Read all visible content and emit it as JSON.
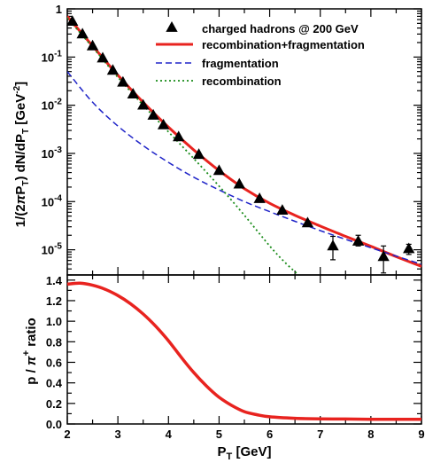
{
  "chart_data": [
    {
      "type": "scatter",
      "panel": "top",
      "ylabel": "1/(2πP_T) dN/dP_T [GeV^-2]",
      "yscale": "log",
      "xlim": [
        2,
        9
      ],
      "ylim": [
        3e-06,
        1
      ],
      "grid": false,
      "legend_position": "top-right",
      "y_ticks": [
        1,
        0.1,
        0.01,
        0.001,
        0.0001,
        1e-05
      ],
      "y_tick_labels": [
        {
          "base": "1",
          "exp": ""
        },
        {
          "base": "10",
          "exp": "-1"
        },
        {
          "base": "10",
          "exp": "-2"
        },
        {
          "base": "10",
          "exp": "-3"
        },
        {
          "base": "10",
          "exp": "-4"
        },
        {
          "base": "10",
          "exp": "-5"
        }
      ],
      "series": [
        {
          "name": "charged hadrons @ 200 GeV",
          "style": "triangles",
          "color": "#000000",
          "points": [
            {
              "x": 2.1,
              "y": 0.55
            },
            {
              "x": 2.3,
              "y": 0.3
            },
            {
              "x": 2.5,
              "y": 0.17
            },
            {
              "x": 2.7,
              "y": 0.095
            },
            {
              "x": 2.9,
              "y": 0.053
            },
            {
              "x": 3.1,
              "y": 0.03
            },
            {
              "x": 3.3,
              "y": 0.017
            },
            {
              "x": 3.5,
              "y": 0.01
            },
            {
              "x": 3.7,
              "y": 0.0062
            },
            {
              "x": 3.9,
              "y": 0.0039
            },
            {
              "x": 4.2,
              "y": 0.0022
            },
            {
              "x": 4.6,
              "y": 0.00095
            },
            {
              "x": 5.0,
              "y": 0.00044
            },
            {
              "x": 5.4,
              "y": 0.00023
            },
            {
              "x": 5.8,
              "y": 0.000115
            },
            {
              "x": 6.25,
              "y": 6.6e-05
            },
            {
              "x": 6.75,
              "y": 3.6e-05
            },
            {
              "x": 7.25,
              "y": 1.2e-05,
              "ylo": 6.2e-06,
              "yhi": 1.9e-05
            },
            {
              "x": 7.75,
              "y": 1.5e-05,
              "ylo": 1.2e-05,
              "yhi": 2e-05
            },
            {
              "x": 8.25,
              "y": 7.2e-06,
              "ylo": 3.3e-06,
              "yhi": 1.2e-05
            },
            {
              "x": 8.75,
              "y": 1.05e-05,
              "ylo": 8e-06,
              "yhi": 1.3e-05
            }
          ]
        },
        {
          "name": "recombination+fragmentation",
          "style": "line",
          "color": "#e8231f",
          "x": [
            2.0,
            2.5,
            3.0,
            3.5,
            4.0,
            4.5,
            5.0,
            5.5,
            6.0,
            6.5,
            7.0,
            7.5,
            8.0,
            8.5,
            9.0
          ],
          "y": [
            0.7,
            0.17,
            0.042,
            0.0115,
            0.0035,
            0.00118,
            0.00044,
            0.000185,
            9.2e-05,
            5.2e-05,
            3.1e-05,
            1.9e-05,
            1.18e-05,
            7.2e-06,
            4.5e-06
          ]
        },
        {
          "name": "fragmentation",
          "style": "dashed",
          "color": "#1f24c8",
          "x": [
            2.0,
            2.5,
            3.0,
            3.5,
            4.0,
            4.5,
            5.0,
            5.5,
            6.0,
            6.5,
            7.0,
            7.5,
            8.0,
            8.5,
            9.0
          ],
          "y": [
            0.05,
            0.0115,
            0.0037,
            0.00145,
            0.00065,
            0.00032,
            0.000175,
            0.0001,
            6.2e-05,
            3.9e-05,
            2.5e-05,
            1.65e-05,
            1.1e-05,
            7.4e-06,
            5e-06
          ]
        },
        {
          "name": "recombination",
          "style": "dotted",
          "color": "#1a8c1a",
          "x": [
            2.0,
            2.5,
            3.0,
            3.5,
            4.0,
            4.5,
            5.0,
            5.5,
            6.0,
            6.3,
            6.6
          ],
          "y": [
            0.65,
            0.16,
            0.038,
            0.01,
            0.0028,
            0.00078,
            0.00021,
            5.2e-05,
            1.2e-05,
            5.5e-06,
            2.8e-06
          ]
        }
      ]
    },
    {
      "type": "line",
      "panel": "bottom",
      "xlabel": "P_T [GeV]",
      "ylabel": "p / π^+ ratio",
      "xlim": [
        2,
        9
      ],
      "ylim": [
        0,
        1.45
      ],
      "grid": false,
      "x_ticks": [
        2,
        3,
        4,
        5,
        6,
        7,
        8,
        9
      ],
      "x_tick_labels": [
        "2",
        "3",
        "4",
        "5",
        "6",
        "7",
        "8",
        "9"
      ],
      "y_ticks": [
        0,
        0.2,
        0.4,
        0.6,
        0.8,
        1.0,
        1.2,
        1.4
      ],
      "y_tick_labels": [
        "0.0",
        "0.2",
        "0.4",
        "0.6",
        "0.8",
        "1.0",
        "1.2",
        "1.4"
      ],
      "series": [
        {
          "style": "line",
          "color": "#e8231f",
          "x": [
            2.0,
            2.25,
            2.5,
            2.75,
            3.0,
            3.25,
            3.5,
            3.75,
            4.0,
            4.25,
            4.5,
            4.75,
            5.0,
            5.25,
            5.5,
            5.75,
            6.0,
            6.5,
            7.0,
            7.5,
            8.0,
            8.5,
            9.0
          ],
          "y": [
            1.36,
            1.37,
            1.35,
            1.31,
            1.25,
            1.17,
            1.07,
            0.95,
            0.81,
            0.65,
            0.5,
            0.37,
            0.26,
            0.18,
            0.12,
            0.09,
            0.07,
            0.055,
            0.05,
            0.048,
            0.046,
            0.046,
            0.046
          ]
        }
      ]
    }
  ]
}
